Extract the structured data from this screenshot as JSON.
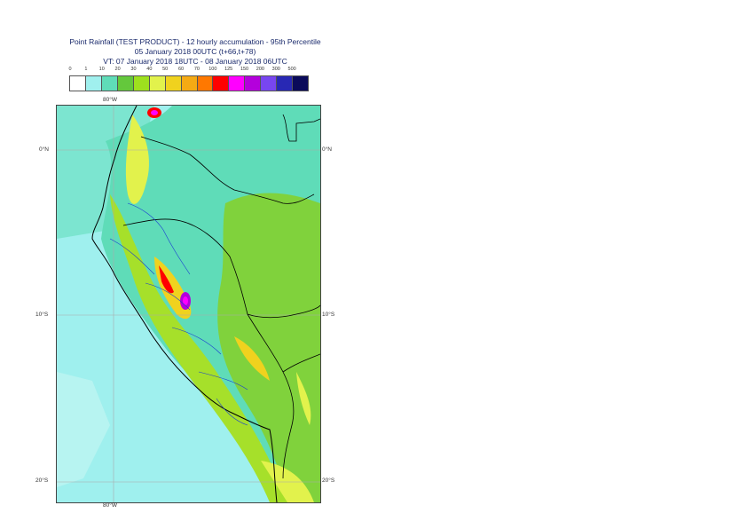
{
  "title": {
    "line1": "Point Rainfall (TEST PRODUCT) - 12 hourly accumulation - 95th Percentile",
    "line2": "05 January 2018 00UTC (t+66,t+78)",
    "line3": "VT: 07 January 2018 18UTC - 08 January 2018 06UTC"
  },
  "legend": {
    "thresholds": [
      "0",
      "1",
      "10",
      "20",
      "30",
      "40",
      "50",
      "60",
      "70",
      "100",
      "125",
      "150",
      "200",
      "300",
      "500"
    ],
    "colors": [
      "#ffffff",
      "#a0f0ee",
      "#5fdcb8",
      "#64c83c",
      "#9ee01e",
      "#e2f24c",
      "#f0d21e",
      "#f5aa14",
      "#ff7800",
      "#ff0000",
      "#ff00ff",
      "#b400dc",
      "#7846f0",
      "#2828b4",
      "#0a0a5a"
    ]
  },
  "axes": {
    "lon_top": "80°W",
    "lon_bottom": "80°W",
    "lat_0_left": "0°N",
    "lat_0_right": "0°N",
    "lat_10_left": "10°S",
    "lat_10_right": "10°S",
    "lat_20_left": "20°S",
    "lat_20_right": "20°S"
  },
  "colors": {
    "ocean_light": "#9ff0ee",
    "land_low": "#5fdcb8",
    "land_mid": "#80d23c",
    "land_high": "#a6e02a",
    "coast_line": "#000000",
    "border_blue": "#1a3cd2",
    "grid": "#aaaaaa"
  }
}
